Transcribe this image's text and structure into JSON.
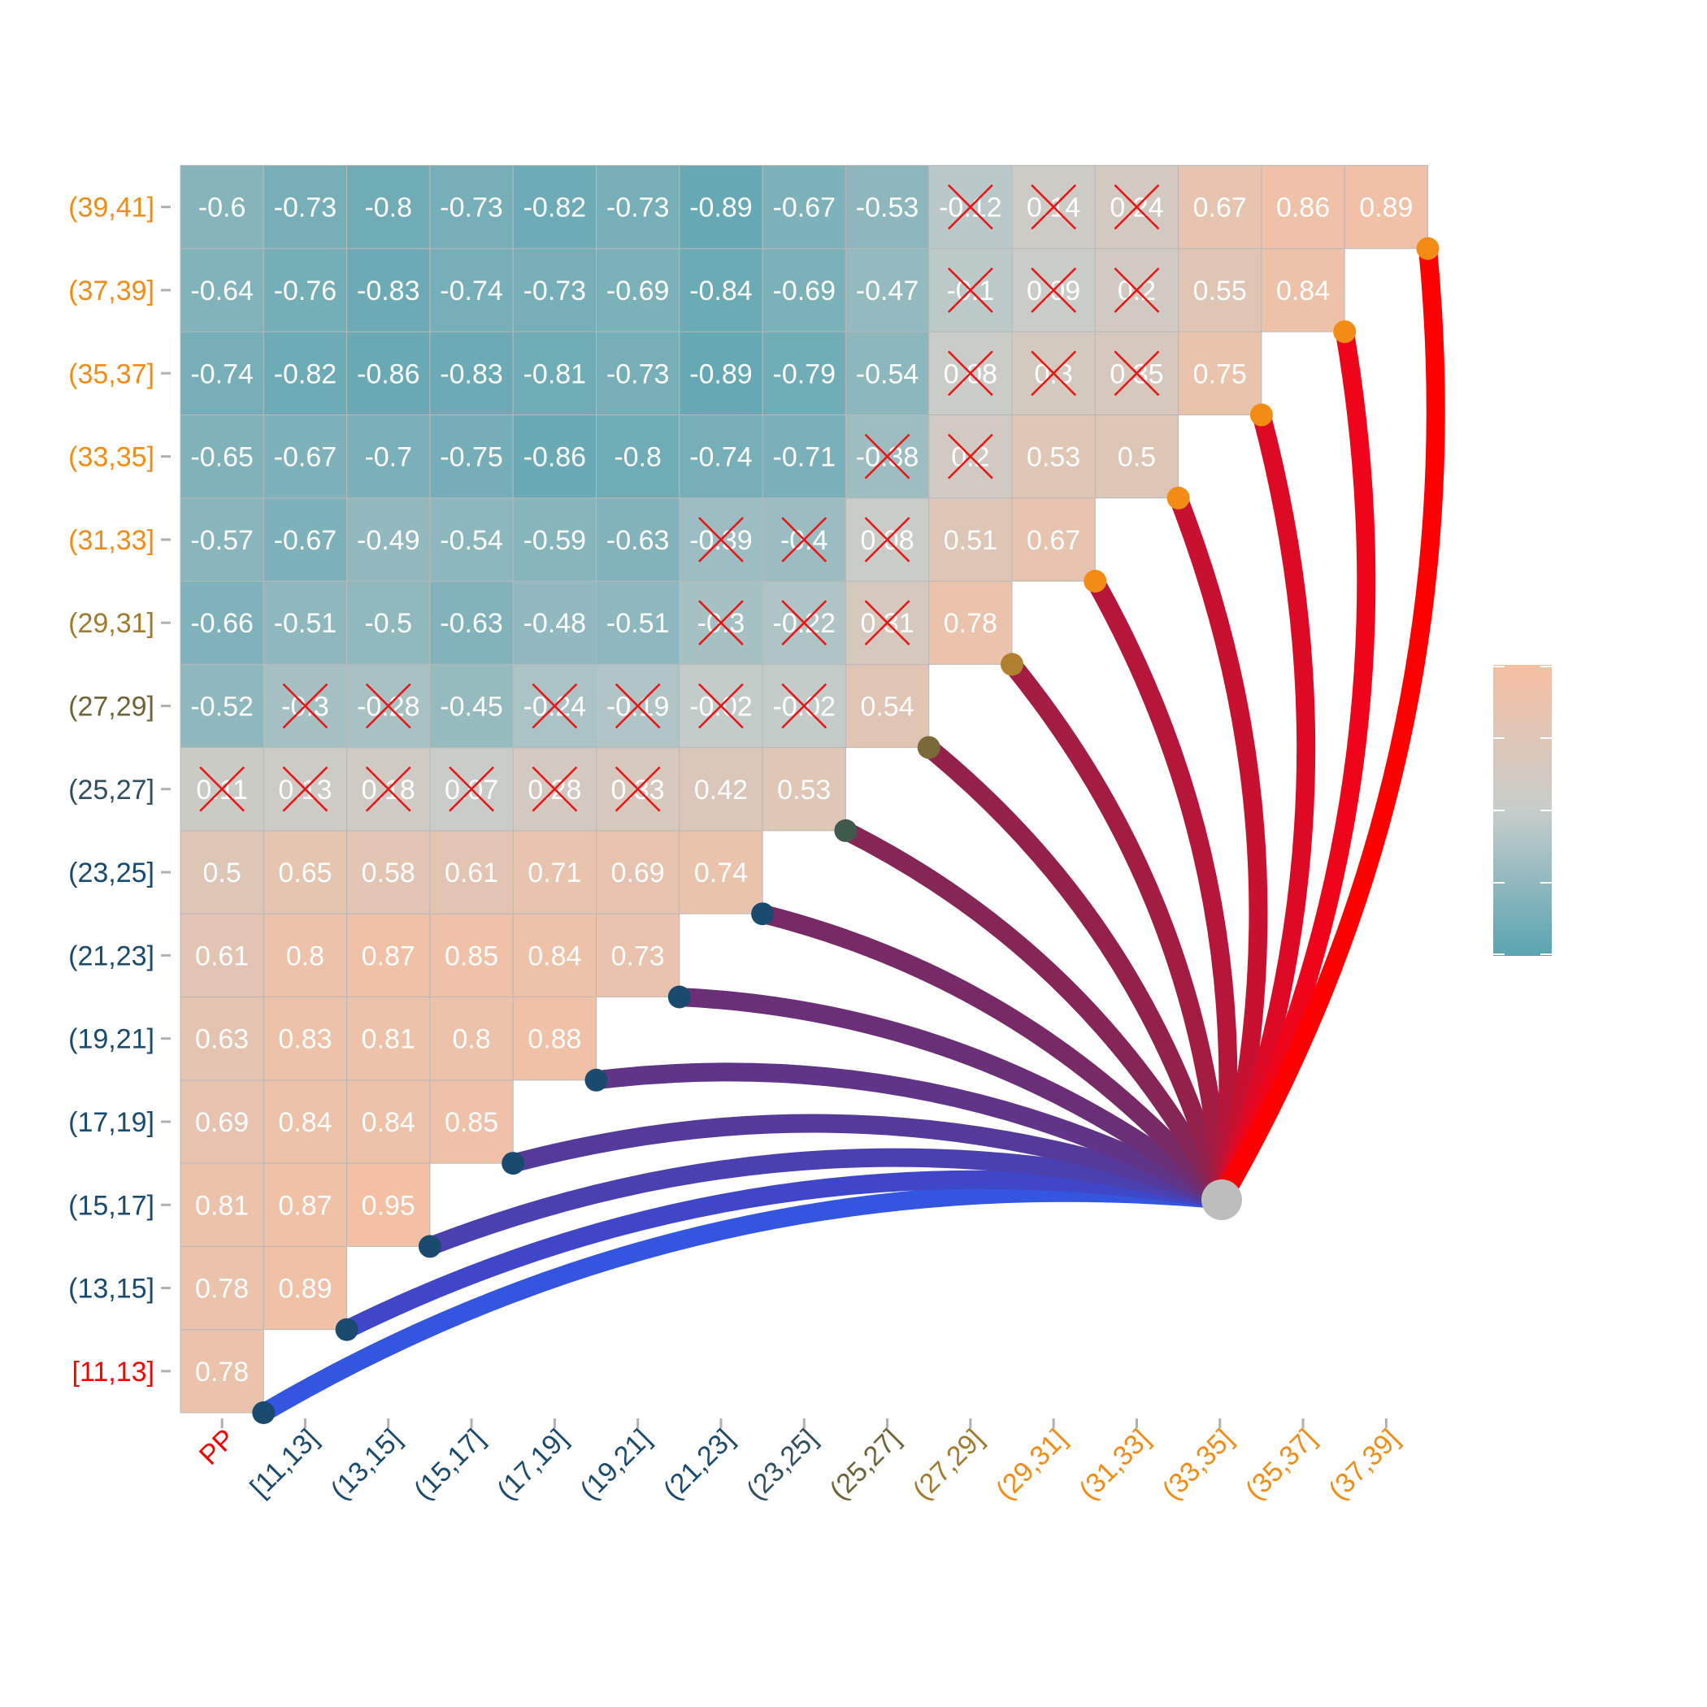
{
  "chart_data": {
    "type": "heatmap",
    "title": "",
    "xlabel": "",
    "ylabel": "",
    "x_categories": [
      "PP",
      "[11,13]",
      "(13,15]",
      "(15,17]",
      "(17,19]",
      "(19,21]",
      "(21,23]",
      "(23,25]",
      "(25,27]",
      "(27,29]",
      "(29,31]",
      "(31,33]",
      "(33,35]",
      "(35,37]",
      "(37,39]"
    ],
    "y_categories": [
      "[11,13]",
      "(13,15]",
      "(15,17]",
      "(17,19]",
      "(19,21]",
      "(21,23]",
      "(23,25]",
      "(25,27]",
      "(27,29]",
      "(29,31]",
      "(31,33]",
      "(33,35]",
      "(35,37]",
      "(37,39]",
      "(39,41]"
    ],
    "x_label_colors": [
      "#ff0000",
      "#1a4a6e",
      "#1a4a6e",
      "#1a4a6e",
      "#1a4a6e",
      "#1a4a6e",
      "#1a4a6e",
      "#2f5060",
      "#6e6438",
      "#a27a2c",
      "#f28c14",
      "#f28c14",
      "#f28c14",
      "#f28c14",
      "#f28c14"
    ],
    "y_label_colors": [
      "#ff0000",
      "#1a4a6e",
      "#1a4a6e",
      "#1a4a6e",
      "#1a4a6e",
      "#1a4a6e",
      "#1a4a6e",
      "#2f5060",
      "#6e6438",
      "#a27a2c",
      "#f28c14",
      "#f28c14",
      "#f28c14",
      "#f28c14",
      "#f28c14"
    ],
    "rows": [
      {
        "values": [
          "0.78"
        ],
        "crossed": []
      },
      {
        "values": [
          "0.78",
          "0.89"
        ],
        "crossed": []
      },
      {
        "values": [
          "0.81",
          "0.87",
          "0.95"
        ],
        "crossed": []
      },
      {
        "values": [
          "0.69",
          "0.84",
          "0.84",
          "0.85"
        ],
        "crossed": []
      },
      {
        "values": [
          "0.63",
          "0.83",
          "0.81",
          "0.8",
          "0.88"
        ],
        "crossed": []
      },
      {
        "values": [
          "0.61",
          "0.8",
          "0.87",
          "0.85",
          "0.84",
          "0.73"
        ],
        "crossed": []
      },
      {
        "values": [
          "0.5",
          "0.65",
          "0.58",
          "0.61",
          "0.71",
          "0.69",
          "0.74"
        ],
        "crossed": []
      },
      {
        "values": [
          "0.11",
          "0.13",
          "0.18",
          "0.07",
          "0.28",
          "0.33",
          "0.42",
          "0.53"
        ],
        "crossed": [
          0,
          1,
          2,
          3,
          4,
          5
        ]
      },
      {
        "values": [
          "-0.52",
          "-0.3",
          "-0.28",
          "-0.45",
          "-0.24",
          "-0.19",
          "-0.02",
          "-0.02",
          "0.54"
        ],
        "crossed": [
          1,
          2,
          4,
          5,
          6,
          7
        ]
      },
      {
        "values": [
          "-0.66",
          "-0.51",
          "-0.5",
          "-0.63",
          "-0.48",
          "-0.51",
          "-0.3",
          "-0.22",
          "0.31",
          "0.78"
        ],
        "crossed": [
          6,
          7,
          8
        ]
      },
      {
        "values": [
          "-0.57",
          "-0.67",
          "-0.49",
          "-0.54",
          "-0.59",
          "-0.63",
          "-0.39",
          "-0.4",
          "0.08",
          "0.51",
          "0.67"
        ],
        "crossed": [
          6,
          7,
          8
        ]
      },
      {
        "values": [
          "-0.65",
          "-0.67",
          "-0.7",
          "-0.75",
          "-0.86",
          "-0.8",
          "-0.74",
          "-0.71",
          "-0.38",
          "0.2",
          "0.53",
          "0.5"
        ],
        "crossed": [
          8,
          9
        ]
      },
      {
        "values": [
          "-0.74",
          "-0.82",
          "-0.86",
          "-0.83",
          "-0.81",
          "-0.73",
          "-0.89",
          "-0.79",
          "-0.54",
          "0.08",
          "0.3",
          "0.35",
          "0.75"
        ],
        "crossed": [
          9,
          10,
          11
        ]
      },
      {
        "values": [
          "-0.64",
          "-0.76",
          "-0.83",
          "-0.74",
          "-0.73",
          "-0.69",
          "-0.84",
          "-0.69",
          "-0.47",
          "-0.1",
          "0.09",
          "0.2",
          "0.55",
          "0.84"
        ],
        "crossed": [
          9,
          10,
          11
        ]
      },
      {
        "values": [
          "-0.6",
          "-0.73",
          "-0.8",
          "-0.73",
          "-0.82",
          "-0.73",
          "-0.89",
          "-0.67",
          "-0.53",
          "-0.12",
          "0.14",
          "0.24",
          "0.67",
          "0.86",
          "0.89"
        ],
        "crossed": [
          9,
          10,
          11
        ]
      }
    ],
    "color_scale": {
      "low": "#5aa4b1",
      "mid": "#c6cdcb",
      "high": "#f6bfa2",
      "range": [
        -1,
        1
      ]
    },
    "links": {
      "hub_color": "#bdbdbd",
      "colors": [
        "#3355e0",
        "#3f47c8",
        "#4a40b0",
        "#553a9c",
        "#5f3489",
        "#6a2f77",
        "#772a66",
        "#852656",
        "#93214b",
        "#a31c42",
        "#b5163a",
        "#c81031",
        "#dd0a26",
        "#ef051a",
        "#ff0000"
      ],
      "endpoint_colors": [
        "#1a4a6e",
        "#1a4a6e",
        "#1a4a6e",
        "#1a4a6e",
        "#1a4a6e",
        "#1a4a6e",
        "#1a4a6e",
        "#3e5a4a",
        "#7a6a3a",
        "#b08030",
        "#f28c14",
        "#f28c14",
        "#f28c14",
        "#f28c14",
        "#f28c14"
      ]
    },
    "legend": {
      "position": "right",
      "labels": []
    }
  }
}
